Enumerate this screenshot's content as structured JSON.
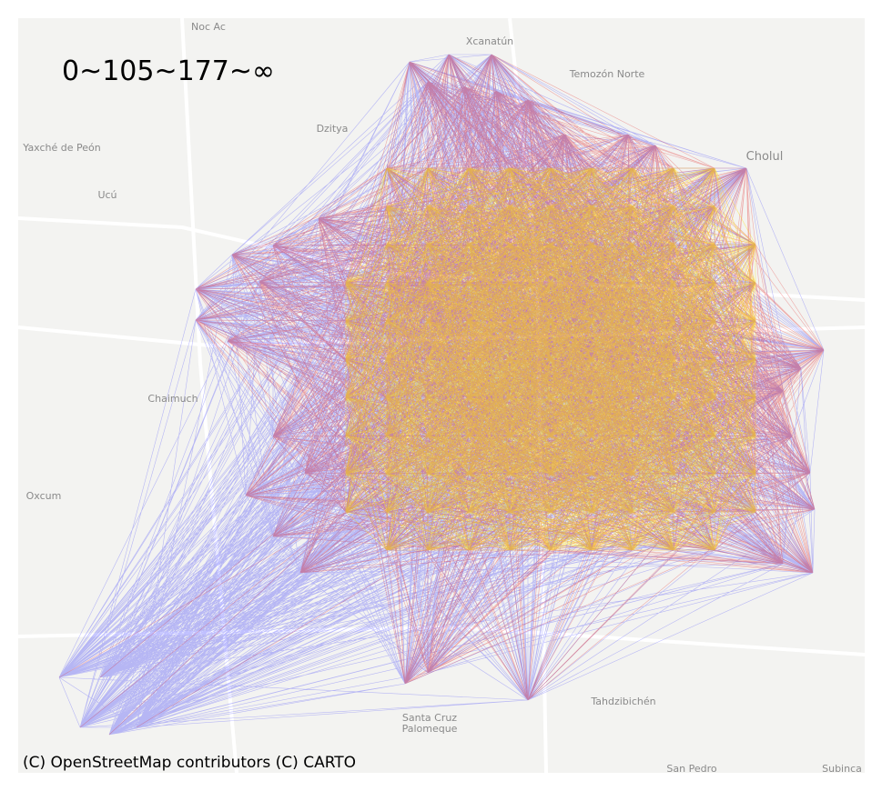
{
  "title": "0~105~177~∞",
  "attribution": "(C) OpenStreetMap contributors (C) CARTO",
  "places": [
    "Noc Ac",
    "Xcanatún",
    "Temozón Norte",
    "Dzitya",
    "Yaxché de Peón",
    "Ucú",
    "Cholul",
    "Chaimuch",
    "Oxcum",
    "Santa Cruz",
    "Palomeque",
    "Tahdzibichén",
    "San Pedro",
    "Subinca"
  ]
}
